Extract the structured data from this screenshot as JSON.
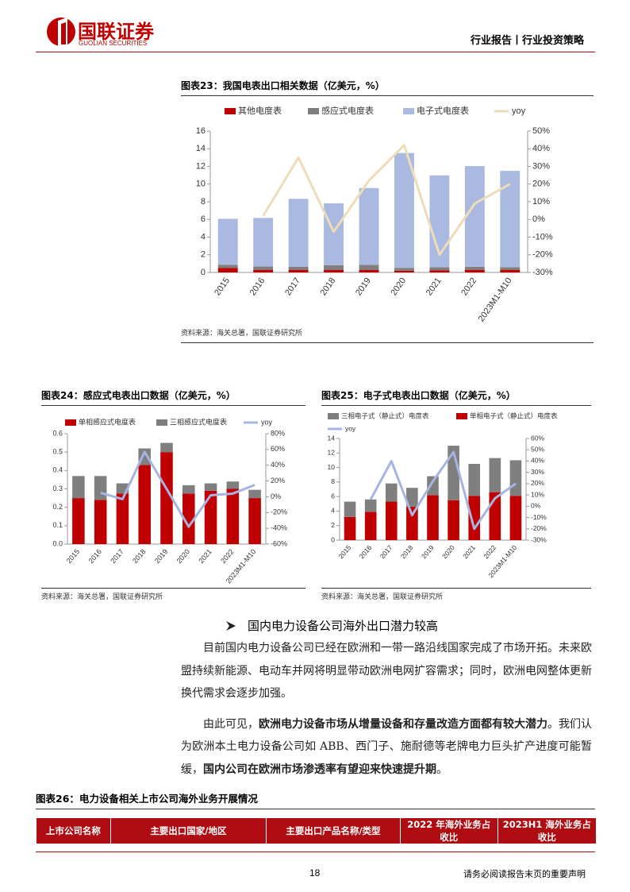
{
  "header": {
    "logo_cn": "国联证券",
    "logo_en": "GUOLIAN SECURITIES",
    "category": "行业报告丨行业投资策略"
  },
  "chart_data": [
    {
      "type": "bar",
      "stacked": true,
      "title": "图表23：我国电表出口相关数据（亿美元，%）",
      "categories": [
        "2015",
        "2016",
        "2017",
        "2018",
        "2019",
        "2020",
        "2021",
        "2022",
        "2023M1-M10"
      ],
      "series": [
        {
          "name": "其他电度表",
          "color": "#c00000",
          "values": [
            0.5,
            0.3,
            0.3,
            0.3,
            0.3,
            0.2,
            0.25,
            0.3,
            0.3
          ]
        },
        {
          "name": "感应式电度表",
          "color": "#7f7f7f",
          "values": [
            0.37,
            0.37,
            0.33,
            0.52,
            0.55,
            0.32,
            0.33,
            0.34,
            0.3
          ]
        },
        {
          "name": "电子式电度表",
          "color": "#a9b9e0",
          "values": [
            5.2,
            5.5,
            7.7,
            7.0,
            8.7,
            13.0,
            10.4,
            11.4,
            10.9
          ]
        },
        {
          "name": "yoy",
          "type": "line",
          "axis": "y2",
          "color": "#eddcb8",
          "values": [
            null,
            2,
            35,
            -7,
            22,
            42,
            -20,
            9,
            20
          ]
        }
      ],
      "ylim": [
        0,
        16
      ],
      "yticks": [
        0,
        2,
        4,
        6,
        8,
        10,
        12,
        14,
        16
      ],
      "y2lim": [
        -30,
        50
      ],
      "y2ticks": [
        {
          "value": -30,
          "label": "-30%"
        },
        {
          "value": -20,
          "label": "-20%"
        },
        {
          "value": -10,
          "label": "-10%"
        },
        {
          "value": 0,
          "label": "0%"
        },
        {
          "value": 10,
          "label": "10%"
        },
        {
          "value": 20,
          "label": "20%"
        },
        {
          "value": 30,
          "label": "30%"
        },
        {
          "value": 40,
          "label": "40%"
        },
        {
          "value": 50,
          "label": "50%"
        }
      ],
      "source": "资料来源：海关总署，国联证券研究所"
    },
    {
      "type": "bar",
      "stacked": true,
      "title": "图表24：感应式电表出口数据（亿美元，%）",
      "categories": [
        "2015",
        "2016",
        "2017",
        "2018",
        "2019",
        "2020",
        "2021",
        "2022",
        "2023M1-M10"
      ],
      "series": [
        {
          "name": "单相感应式电度表",
          "color": "#c00000",
          "values": [
            0.25,
            0.24,
            0.275,
            0.43,
            0.5,
            0.275,
            0.29,
            0.3,
            0.25
          ]
        },
        {
          "name": "三相感应式电度表",
          "color": "#7f7f7f",
          "values": [
            0.12,
            0.13,
            0.055,
            0.09,
            0.05,
            0.045,
            0.04,
            0.04,
            0.045
          ]
        },
        {
          "name": "yoy",
          "type": "line",
          "axis": "y2",
          "color": "#a5b4e0",
          "values": [
            null,
            5,
            -3,
            57,
            10,
            -38,
            2,
            4,
            15
          ]
        }
      ],
      "ylim": [
        0,
        0.6
      ],
      "yticks": [
        {
          "value": 0,
          "label": "0.0"
        },
        0.1,
        0.2,
        0.3,
        0.4,
        0.5,
        0.6
      ],
      "y2lim": [
        -60,
        80
      ],
      "y2ticks": [
        {
          "value": -60,
          "label": "-60%"
        },
        {
          "value": -40,
          "label": "-40%"
        },
        {
          "value": -20,
          "label": "-20%"
        },
        {
          "value": 0,
          "label": "0%"
        },
        {
          "value": 20,
          "label": "20%"
        },
        {
          "value": 40,
          "label": "40%"
        },
        {
          "value": 60,
          "label": "60%"
        },
        {
          "value": 80,
          "label": "80%"
        }
      ],
      "source": "资料来源：海关总署，国联证券研究所"
    },
    {
      "type": "bar",
      "stacked": true,
      "title": "图表25：电子式电表出口数据（亿美元，%）",
      "categories": [
        "2015",
        "2016",
        "2017",
        "2018",
        "2019",
        "2020",
        "2021",
        "2022",
        "2023M1-M10"
      ],
      "series": [
        {
          "name": "单相电子式（静止式）电度表",
          "color": "#c00000",
          "values": [
            3.2,
            3.9,
            5.3,
            4.6,
            6.2,
            5.5,
            6.1,
            6.6,
            6.1
          ]
        },
        {
          "name": "三相电子式（静止式）电度表",
          "color": "#7f7f7f",
          "values": [
            2.1,
            1.7,
            2.5,
            2.6,
            2.6,
            7.5,
            4.4,
            4.7,
            4.9
          ]
        },
        {
          "name": "yoy",
          "type": "line",
          "axis": "y2",
          "color": "#a5b4e0",
          "values": [
            null,
            6,
            40,
            -8,
            22,
            48,
            -20,
            7,
            20
          ]
        }
      ],
      "ylim": [
        0,
        14
      ],
      "yticks": [
        0,
        2,
        4,
        6,
        8,
        10,
        12,
        14
      ],
      "y2lim": [
        -30,
        60
      ],
      "y2ticks": [
        {
          "value": -30,
          "label": "-30%"
        },
        {
          "value": -20,
          "label": "-20%"
        },
        {
          "value": -10,
          "label": "-10%"
        },
        {
          "value": 0,
          "label": "0%"
        },
        {
          "value": 10,
          "label": "10%"
        },
        {
          "value": 20,
          "label": "20%"
        },
        {
          "value": 30,
          "label": "30%"
        },
        {
          "value": 40,
          "label": "40%"
        },
        {
          "value": 50,
          "label": "50%"
        },
        {
          "value": 60,
          "label": "60%"
        }
      ],
      "source": "资料来源：海关总署，国联证券研究所"
    }
  ],
  "section": {
    "heading": "国内电力设备公司海外出口潜力较高",
    "paragraphs": [
      [
        {
          "text": "目前国内电力设备公司已经在欧洲和一带一路沿线国家完成了市场开拓。未来欧盟持续新能源、电动车并网将明显带动欧洲电网扩容需求；同时，欧洲电网整体更新换代需求会逐步加强。",
          "bold": false
        }
      ],
      [
        {
          "text": "由此可见，",
          "bold": false
        },
        {
          "text": "欧洲电力设备市场从增量设备和存量改造方面都有较大潜力",
          "bold": true
        },
        {
          "text": "。我们认为欧洲本土电力设备公司如 ABB、西门子、施耐德等老牌电力巨头扩产进度可能暂缓，",
          "bold": false
        },
        {
          "text": "国内公司在欧洲市场渗透率有望迎来快速提升期",
          "bold": true
        },
        {
          "text": "。",
          "bold": false
        }
      ]
    ]
  },
  "table": {
    "title": "图表26：电力设备相关上市公司海外业务开展情况",
    "header": [
      "上市公司名称",
      "主要出口国家/地区",
      "主要出口产品名称/类型",
      "2022 年海外业务占收比",
      "2023H1 海外业务占收比"
    ]
  },
  "footer": {
    "page": "18",
    "disclaimer": "请务必阅读报告末页的重要声明"
  }
}
